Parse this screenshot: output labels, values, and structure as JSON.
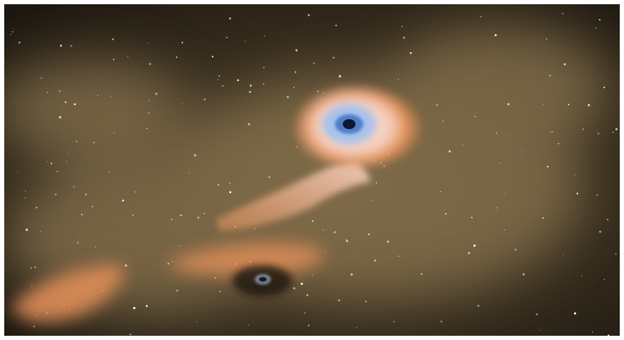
{
  "image": {
    "scene": "space-artwork",
    "colors": {
      "background_dark": "#1c1710",
      "nebula": "#5a4a30",
      "dust_glow": "#8a7450",
      "disk_orange": "#e6915a",
      "disk_pink": "#f4d2c4",
      "core_blue": "#4f7fc8",
      "core_light": "#a8c2ec",
      "black_hole": "#0d1830",
      "star": "#ffffff"
    },
    "objects": [
      {
        "name": "upper-black-hole",
        "icon": "black-hole-icon"
      },
      {
        "name": "lower-black-hole",
        "icon": "black-hole-icon"
      },
      {
        "name": "gas-stream",
        "icon": "gas-stream-icon"
      },
      {
        "name": "lower-gas-cloud",
        "icon": "gas-cloud-icon"
      },
      {
        "name": "left-gas-cloud",
        "icon": "gas-cloud-icon"
      }
    ],
    "star_field": {
      "icon": "star-icon"
    }
  }
}
